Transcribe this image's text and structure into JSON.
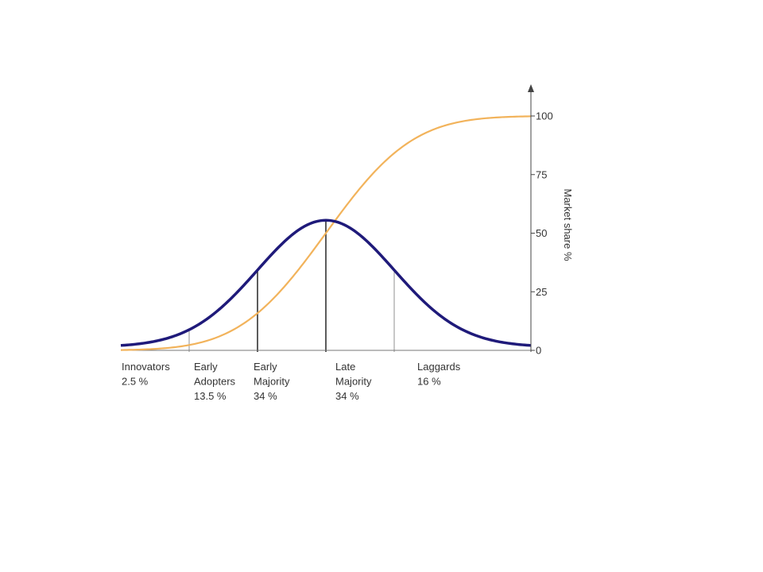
{
  "chart_data": {
    "type": "line",
    "title": "",
    "xlabel": "",
    "ylabel": "Market share %",
    "ylim": [
      0,
      100
    ],
    "yticks": [
      "0",
      "25",
      "50",
      "75",
      "100"
    ],
    "segments": [
      {
        "name": "Innovators",
        "share": "2.5 %"
      },
      {
        "name": "Early Adopters",
        "share": "13.5 %"
      },
      {
        "name": "Early Majority",
        "share": "34 %"
      },
      {
        "name": "Late Majority",
        "share": "34 %"
      },
      {
        "name": "Laggards",
        "share": "16 %"
      }
    ],
    "segment_boundaries_sd": [
      -2,
      -1,
      0,
      1
    ],
    "x_range_sd": [
      -3,
      3
    ],
    "series": [
      {
        "kind": "adoption-bell",
        "color": "#1f1a7a",
        "peak_share": 55.5,
        "base_share": 1.5
      },
      {
        "kind": "cumulative-s-curve",
        "color": "#f2b35b",
        "min_share": 0,
        "max_share": 100
      }
    ],
    "grid": false,
    "legend": "none"
  }
}
